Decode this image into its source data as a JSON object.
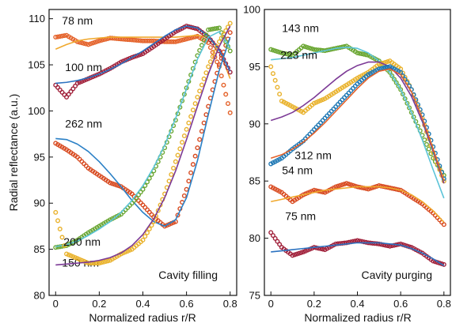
{
  "chart_data": [
    {
      "type": "scatter",
      "panel": "left",
      "ylabel": "Radial reflectance (a.u.)",
      "xlabel": "Normalized radius r/R",
      "xlim": [
        -0.03,
        0.83
      ],
      "ylim": [
        80,
        111
      ],
      "xticks": [
        "0",
        "0.2",
        "0.4",
        "0.6",
        "0.8"
      ],
      "yticks": [
        "80",
        "85",
        "90",
        "95",
        "100",
        "105",
        "110"
      ],
      "grid": false,
      "annotation": "Cavity filling",
      "series": [
        {
          "label": "78 nm",
          "color": "#e4622a",
          "fit_color": "#f0a92e",
          "x": [
            0,
            0.05,
            0.1,
            0.15,
            0.2,
            0.25,
            0.3,
            0.35,
            0.4,
            0.45,
            0.5,
            0.55,
            0.6,
            0.65,
            0.7,
            0.75,
            0.8
          ],
          "y": [
            108.0,
            108.2,
            107.5,
            107.2,
            107.6,
            107.9,
            107.8,
            107.7,
            107.6,
            107.6,
            107.5,
            107.5,
            107.8,
            108.1,
            107.4,
            104.8,
            99.8
          ],
          "fit": [
            106.7,
            107.2,
            107.6,
            107.8,
            107.9,
            108.0,
            108.0,
            108.0,
            108.0,
            108.0,
            108.0,
            108.0,
            108.1,
            108.2,
            108.0,
            106.6,
            103.5
          ]
        },
        {
          "label": "100 nm",
          "color": "#a0203a",
          "fit_color": "#2b72c0",
          "x": [
            0,
            0.05,
            0.1,
            0.15,
            0.2,
            0.25,
            0.3,
            0.35,
            0.4,
            0.45,
            0.5,
            0.55,
            0.6,
            0.65,
            0.7,
            0.75,
            0.8
          ],
          "y": [
            102.8,
            101.5,
            103.0,
            103.5,
            104.0,
            104.6,
            105.3,
            105.8,
            106.2,
            107.0,
            107.8,
            108.6,
            109.2,
            108.9,
            108.0,
            106.5,
            104.2
          ],
          "fit": [
            103.0,
            103.1,
            103.3,
            103.6,
            104.0,
            104.5,
            105.1,
            105.8,
            106.5,
            107.3,
            108.1,
            108.8,
            109.2,
            109.0,
            108.1,
            106.6,
            104.3
          ]
        },
        {
          "label": "262 nm",
          "color": "#d84a20",
          "fit_color": "#2b80c6",
          "x": [
            0,
            0.05,
            0.1,
            0.15,
            0.2,
            0.25,
            0.3,
            0.35,
            0.4,
            0.45,
            0.5,
            0.55,
            0.6,
            0.65,
            0.7,
            0.75,
            0.8
          ],
          "y": [
            96.5,
            95.8,
            95.0,
            93.8,
            93.0,
            92.2,
            91.8,
            91.0,
            89.8,
            88.5,
            87.5,
            88.0,
            91.5,
            96.0,
            100.5,
            105.0,
            108.5
          ],
          "fit": [
            97.0,
            96.9,
            96.4,
            95.6,
            94.5,
            93.2,
            91.8,
            90.3,
            89.0,
            88.0,
            87.5,
            88.2,
            90.6,
            94.6,
            99.6,
            104.4,
            108.0
          ]
        },
        {
          "label": "150 nm",
          "color": "#6aa632",
          "fit_color": "#5cc4d8",
          "x": [
            0,
            0.05,
            0.1,
            0.15,
            0.2,
            0.25,
            0.3,
            0.35,
            0.4,
            0.45,
            0.5,
            0.55,
            0.6,
            0.65,
            0.7,
            0.75,
            0.8
          ],
          "y": [
            85.2,
            85.4,
            86.0,
            86.8,
            87.5,
            88.2,
            88.8,
            90.0,
            91.5,
            93.5,
            96.0,
            99.0,
            102.5,
            106.0,
            108.8,
            109.0,
            106.5
          ],
          "fit": [
            85.3,
            85.5,
            85.9,
            86.5,
            87.2,
            88.0,
            89.0,
            90.3,
            91.9,
            93.9,
            96.3,
            99.2,
            102.4,
            105.6,
            108.0,
            108.6,
            106.8
          ]
        },
        {
          "label": "200 nm",
          "color": "#e9b22c",
          "fit_color": "#7c3a96",
          "x": [
            0,
            0.05,
            0.1,
            0.15,
            0.2,
            0.25,
            0.3,
            0.35,
            0.4,
            0.45,
            0.5,
            0.55,
            0.6,
            0.65,
            0.7,
            0.75,
            0.8
          ],
          "y": [
            89.0,
            84.5,
            84.0,
            83.5,
            83.5,
            83.8,
            84.5,
            85.0,
            86.0,
            88.0,
            91.0,
            94.5,
            98.0,
            101.5,
            104.8,
            107.5,
            109.5
          ],
          "fit": [
            83.3,
            83.4,
            83.5,
            83.6,
            83.8,
            84.1,
            84.6,
            85.4,
            86.6,
            88.3,
            90.6,
            93.5,
            96.9,
            100.5,
            104.0,
            107.0,
            109.2
          ]
        }
      ],
      "series_label_positions": "annotated next to curves",
      "legend": "none"
    },
    {
      "type": "scatter",
      "panel": "right",
      "ylabel": "",
      "xlabel": "Normalized radius r/R",
      "xlim": [
        -0.03,
        0.83
      ],
      "ylim": [
        75,
        100
      ],
      "xticks": [
        "0",
        "0.2",
        "0.4",
        "0.6",
        "0.8"
      ],
      "yticks": [
        "75",
        "80",
        "85",
        "90",
        "95",
        "100"
      ],
      "grid": false,
      "annotation": "Cavity purging",
      "series": [
        {
          "label": "143 nm",
          "color": "#6aa632",
          "fit_color": "#5cc4d8",
          "x": [
            0,
            0.05,
            0.1,
            0.15,
            0.2,
            0.25,
            0.3,
            0.35,
            0.4,
            0.45,
            0.5,
            0.55,
            0.6,
            0.65,
            0.7,
            0.75,
            0.8
          ],
          "y": [
            96.5,
            96.2,
            96.0,
            96.8,
            96.5,
            96.4,
            96.6,
            96.8,
            96.2,
            96.0,
            95.5,
            94.5,
            93.0,
            91.0,
            89.0,
            87.0,
            85.5
          ],
          "fit": [
            95.6,
            95.7,
            95.8,
            96.0,
            96.2,
            96.4,
            96.6,
            96.7,
            96.6,
            96.2,
            95.5,
            94.5,
            93.0,
            91.0,
            88.6,
            86.0,
            83.5
          ]
        },
        {
          "label": "223 nm",
          "color": "#e9b22c",
          "fit_color": "#7c3a96",
          "x": [
            0,
            0.05,
            0.1,
            0.15,
            0.2,
            0.25,
            0.3,
            0.35,
            0.4,
            0.45,
            0.5,
            0.55,
            0.6,
            0.65,
            0.7,
            0.75,
            0.8
          ],
          "y": [
            95.0,
            92.0,
            91.5,
            91.0,
            91.8,
            92.2,
            92.8,
            93.4,
            94.0,
            94.5,
            95.2,
            95.5,
            94.8,
            93.0,
            90.5,
            87.5,
            85.0
          ],
          "fit": [
            90.3,
            90.6,
            91.0,
            91.6,
            92.3,
            93.1,
            93.9,
            94.6,
            95.1,
            95.4,
            95.4,
            95.0,
            94.0,
            92.4,
            90.2,
            87.6,
            84.8
          ]
        },
        {
          "label": "312 nm",
          "color": "#1f78b4",
          "fit_color": "#e4622a",
          "x": [
            0,
            0.05,
            0.1,
            0.15,
            0.2,
            0.25,
            0.3,
            0.35,
            0.4,
            0.45,
            0.5,
            0.55,
            0.6,
            0.65,
            0.7,
            0.75,
            0.8
          ],
          "y": [
            86.5,
            87.0,
            87.8,
            88.5,
            89.5,
            90.5,
            91.5,
            92.5,
            93.5,
            94.3,
            94.8,
            95.0,
            94.5,
            93.0,
            90.8,
            88.0,
            85.2
          ],
          "fit": [
            87.0,
            87.3,
            87.8,
            88.4,
            89.2,
            90.1,
            91.1,
            92.1,
            93.1,
            94.0,
            94.6,
            94.8,
            94.3,
            92.8,
            90.5,
            87.8,
            85.0
          ]
        },
        {
          "label": "54 nm",
          "color": "#d84a20",
          "fit_color": "#f0a92e",
          "x": [
            0,
            0.05,
            0.1,
            0.15,
            0.2,
            0.25,
            0.3,
            0.35,
            0.4,
            0.45,
            0.5,
            0.55,
            0.6,
            0.65,
            0.7,
            0.75,
            0.8
          ],
          "y": [
            84.5,
            84.0,
            83.2,
            83.8,
            84.2,
            84.0,
            84.5,
            84.8,
            84.5,
            84.3,
            84.6,
            84.4,
            84.2,
            83.6,
            83.0,
            82.2,
            81.2
          ],
          "fit": [
            83.2,
            83.4,
            83.6,
            83.8,
            84.0,
            84.2,
            84.3,
            84.4,
            84.5,
            84.5,
            84.5,
            84.4,
            84.2,
            83.8,
            83.2,
            82.4,
            81.4
          ]
        },
        {
          "label": "75 nm",
          "color": "#a0203a",
          "fit_color": "#2b72c0",
          "x": [
            0,
            0.05,
            0.1,
            0.15,
            0.2,
            0.25,
            0.3,
            0.35,
            0.4,
            0.45,
            0.5,
            0.55,
            0.6,
            0.65,
            0.7,
            0.75,
            0.8
          ],
          "y": [
            80.5,
            79.2,
            78.5,
            78.8,
            79.2,
            79.0,
            79.5,
            79.6,
            79.8,
            79.6,
            79.5,
            79.3,
            79.5,
            79.2,
            78.7,
            78.0,
            77.7
          ],
          "fit": [
            78.8,
            78.9,
            79.0,
            79.1,
            79.2,
            79.3,
            79.4,
            79.5,
            79.6,
            79.6,
            79.6,
            79.5,
            79.4,
            79.1,
            78.7,
            78.2,
            77.6
          ]
        }
      ],
      "series_label_positions": "annotated next to curves",
      "legend": "none"
    }
  ]
}
